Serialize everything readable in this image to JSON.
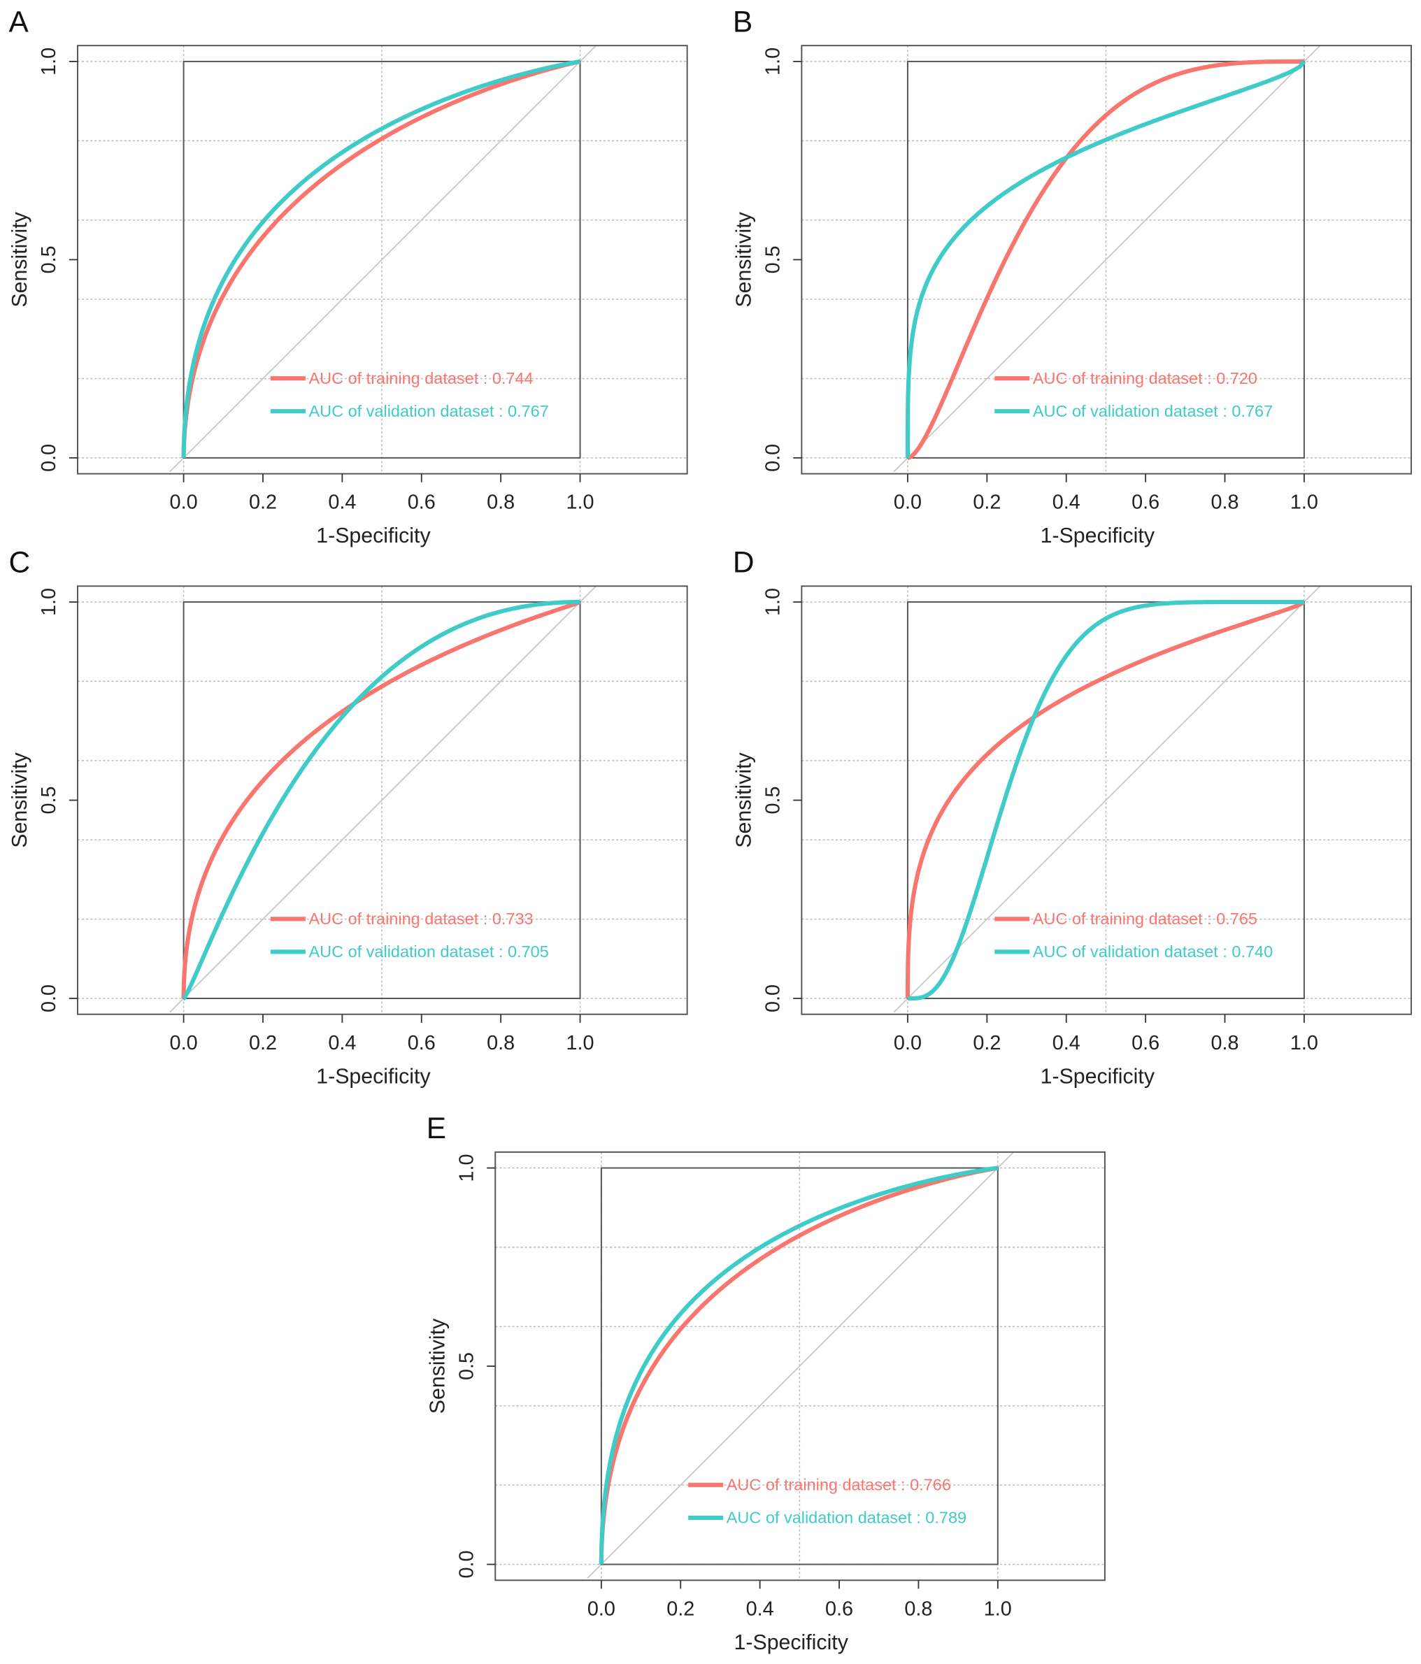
{
  "colors": {
    "training": "#F8766D",
    "validation": "#3FCBC7",
    "frame": "#555555",
    "grid": "#bbbbbb",
    "diagonal": "#c8c8c8"
  },
  "chart_data": [
    {
      "type": "line",
      "panel_label": "A",
      "xlabel": "1-Specificity",
      "ylabel": "Sensitivity",
      "xlim": [
        0,
        1
      ],
      "ylim": [
        0,
        1
      ],
      "xticks": [
        "0.0",
        "0.2",
        "0.4",
        "0.6",
        "0.8",
        "1.0"
      ],
      "yticks": [
        "0.0",
        "0.5",
        "1.0"
      ],
      "grid": true,
      "legend_position": "bottom-right",
      "series": [
        {
          "name": "training",
          "legend": "AUC of training dataset : 0.744",
          "auc": 0.744,
          "binormal_b": 0.85
        },
        {
          "name": "validation",
          "legend": "AUC of validation dataset : 0.767",
          "auc": 0.767,
          "binormal_b": 0.85
        }
      ]
    },
    {
      "type": "line",
      "panel_label": "B",
      "xlabel": "1-Specificity",
      "ylabel": "Sensitivity",
      "xlim": [
        0,
        1
      ],
      "ylim": [
        0,
        1
      ],
      "xticks": [
        "0.0",
        "0.2",
        "0.4",
        "0.6",
        "0.8",
        "1.0"
      ],
      "yticks": [
        "0.0",
        "0.5",
        "1.0"
      ],
      "grid": true,
      "legend_position": "bottom-right",
      "series": [
        {
          "name": "training",
          "legend": "AUC of training dataset : 0.720",
          "auc": 0.72,
          "binormal_b": 1.6
        },
        {
          "name": "validation",
          "legend": "AUC of validation dataset : 0.767",
          "auc": 0.767,
          "binormal_b": 0.6
        }
      ]
    },
    {
      "type": "line",
      "panel_label": "C",
      "xlabel": "1-Specificity",
      "ylabel": "Sensitivity",
      "xlim": [
        0,
        1
      ],
      "ylim": [
        0,
        1
      ],
      "xticks": [
        "0.0",
        "0.2",
        "0.4",
        "0.6",
        "0.8",
        "1.0"
      ],
      "yticks": [
        "0.0",
        "0.5",
        "1.0"
      ],
      "grid": true,
      "legend_position": "bottom-right",
      "series": [
        {
          "name": "training",
          "legend": "AUC of training dataset : 0.733",
          "auc": 0.733,
          "binormal_b": 0.8
        },
        {
          "name": "validation",
          "legend": "AUC of validation dataset : 0.705",
          "auc": 0.705,
          "binormal_b": 1.3
        }
      ]
    },
    {
      "type": "line",
      "panel_label": "D",
      "xlabel": "1-Specificity",
      "ylabel": "Sensitivity",
      "xlim": [
        0,
        1
      ],
      "ylim": [
        0,
        1
      ],
      "xticks": [
        "0.0",
        "0.2",
        "0.4",
        "0.6",
        "0.8",
        "1.0"
      ],
      "yticks": [
        "0.0",
        "0.5",
        "1.0"
      ],
      "grid": true,
      "legend_position": "bottom-right",
      "series": [
        {
          "name": "training",
          "legend": "AUC of training dataset : 0.765",
          "auc": 0.765,
          "binormal_b": 0.7
        },
        {
          "name": "validation",
          "legend": "AUC of validation dataset : 0.740",
          "auc": 0.74,
          "binormal_b": 2.5
        }
      ]
    },
    {
      "type": "line",
      "panel_label": "E",
      "xlabel": "1-Specificity",
      "ylabel": "Sensitivity",
      "xlim": [
        0,
        1
      ],
      "ylim": [
        0,
        1
      ],
      "xticks": [
        "0.0",
        "0.2",
        "0.4",
        "0.6",
        "0.8",
        "1.0"
      ],
      "yticks": [
        "0.0",
        "0.5",
        "1.0"
      ],
      "grid": true,
      "legend_position": "bottom-right",
      "series": [
        {
          "name": "training",
          "legend": "AUC of training dataset : 0.766",
          "auc": 0.766,
          "binormal_b": 0.85
        },
        {
          "name": "validation",
          "legend": "AUC of validation dataset : 0.789",
          "auc": 0.789,
          "binormal_b": 0.85
        }
      ]
    }
  ]
}
